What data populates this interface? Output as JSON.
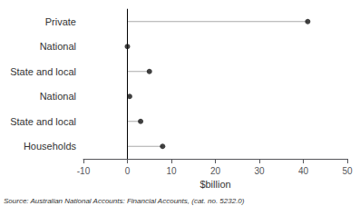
{
  "chart_data": {
    "type": "lollipop",
    "orientation": "horizontal",
    "categories": [
      "Households",
      "State and local",
      "National",
      "State and local",
      "National",
      "Private"
    ],
    "values": [
      8.0,
      3.0,
      0.5,
      5.0,
      0.0,
      41.0
    ],
    "color": "#111111",
    "marker": "circle",
    "xlabel": "$billion",
    "xlim": [
      -10,
      50
    ],
    "xticks": [
      -10,
      0,
      10,
      20,
      30,
      40,
      50
    ],
    "grid": false,
    "annotations": [
      "Source: Australian National Accounts: Financial Accounts, (cat. no. 5232.0)"
    ]
  }
}
